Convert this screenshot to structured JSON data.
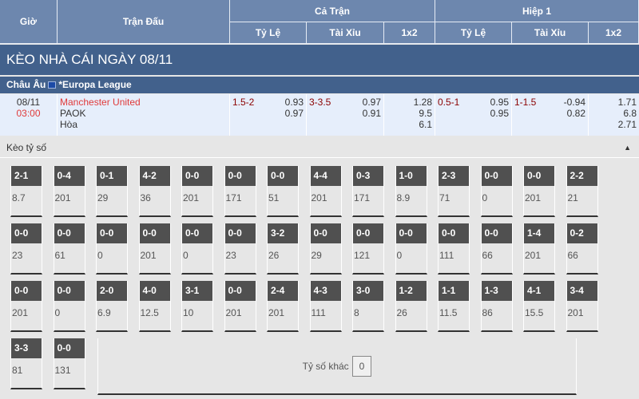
{
  "header": {
    "time": "Giờ",
    "match": "Trận Đấu",
    "full": "Cả Trận",
    "half": "Hiệp 1",
    "sub": [
      "Tỷ Lệ",
      "Tài Xỉu",
      "1x2",
      "Tỷ Lệ",
      "Tài Xỉu",
      "1x2"
    ]
  },
  "title": "KÈO NHÀ CÁI NGÀY 08/11",
  "league": {
    "region": "Châu Âu",
    "name": "*Europa League"
  },
  "match": {
    "date": "08/11",
    "time": "03:00",
    "home": "Manchester United",
    "away": "PAOK",
    "draw": "Hòa",
    "ft_hdp": "1.5-2",
    "ft_hdp_home": "0.93",
    "ft_hdp_away": "0.97",
    "ft_ou": "3-3.5",
    "ft_ou_over": "0.97",
    "ft_ou_under": "0.91",
    "ft_1x2": [
      "1.28",
      "9.5",
      "6.1"
    ],
    "h1_hdp": "0.5-1",
    "h1_hdp_home": "0.95",
    "h1_hdp_away": "0.95",
    "h1_ou": "1-1.5",
    "h1_ou_over": "-0.94",
    "h1_ou_under": "0.82",
    "h1_1x2": [
      "1.71",
      "6.8",
      "2.71"
    ]
  },
  "correct_score": {
    "label": "Kèo tỷ số",
    "collapse_icon": "triangle-up",
    "cells": [
      [
        "2-1",
        "8.7"
      ],
      [
        "0-4",
        "201"
      ],
      [
        "0-1",
        "29"
      ],
      [
        "4-2",
        "36"
      ],
      [
        "0-0",
        "201"
      ],
      [
        "0-0",
        "171"
      ],
      [
        "0-0",
        "51"
      ],
      [
        "4-4",
        "201"
      ],
      [
        "0-3",
        "171"
      ],
      [
        "1-0",
        "8.9"
      ],
      [
        "2-3",
        "71"
      ],
      [
        "0-0",
        "0"
      ],
      [
        "0-0",
        "201"
      ],
      [
        "2-2",
        "21"
      ],
      [
        "0-0",
        "23"
      ],
      [
        "0-0",
        "61"
      ],
      [
        "0-0",
        "0"
      ],
      [
        "0-0",
        "201"
      ],
      [
        "0-0",
        "0"
      ],
      [
        "0-0",
        "23"
      ],
      [
        "3-2",
        "26"
      ],
      [
        "0-0",
        "29"
      ],
      [
        "0-0",
        "121"
      ],
      [
        "0-0",
        "0"
      ],
      [
        "0-0",
        "111"
      ],
      [
        "0-0",
        "66"
      ],
      [
        "1-4",
        "201"
      ],
      [
        "0-2",
        "66"
      ],
      [
        "0-0",
        "201"
      ],
      [
        "0-0",
        "0"
      ],
      [
        "2-0",
        "6.9"
      ],
      [
        "4-0",
        "12.5"
      ],
      [
        "3-1",
        "10"
      ],
      [
        "0-0",
        "201"
      ],
      [
        "2-4",
        "201"
      ],
      [
        "4-3",
        "111"
      ],
      [
        "3-0",
        "8"
      ],
      [
        "1-2",
        "26"
      ],
      [
        "1-1",
        "11.5"
      ],
      [
        "1-3",
        "86"
      ],
      [
        "4-1",
        "15.5"
      ],
      [
        "3-4",
        "201"
      ],
      [
        "3-3",
        "81"
      ],
      [
        "0-0",
        "131"
      ]
    ],
    "other_label": "Tỷ số khác",
    "other_value": "0"
  }
}
